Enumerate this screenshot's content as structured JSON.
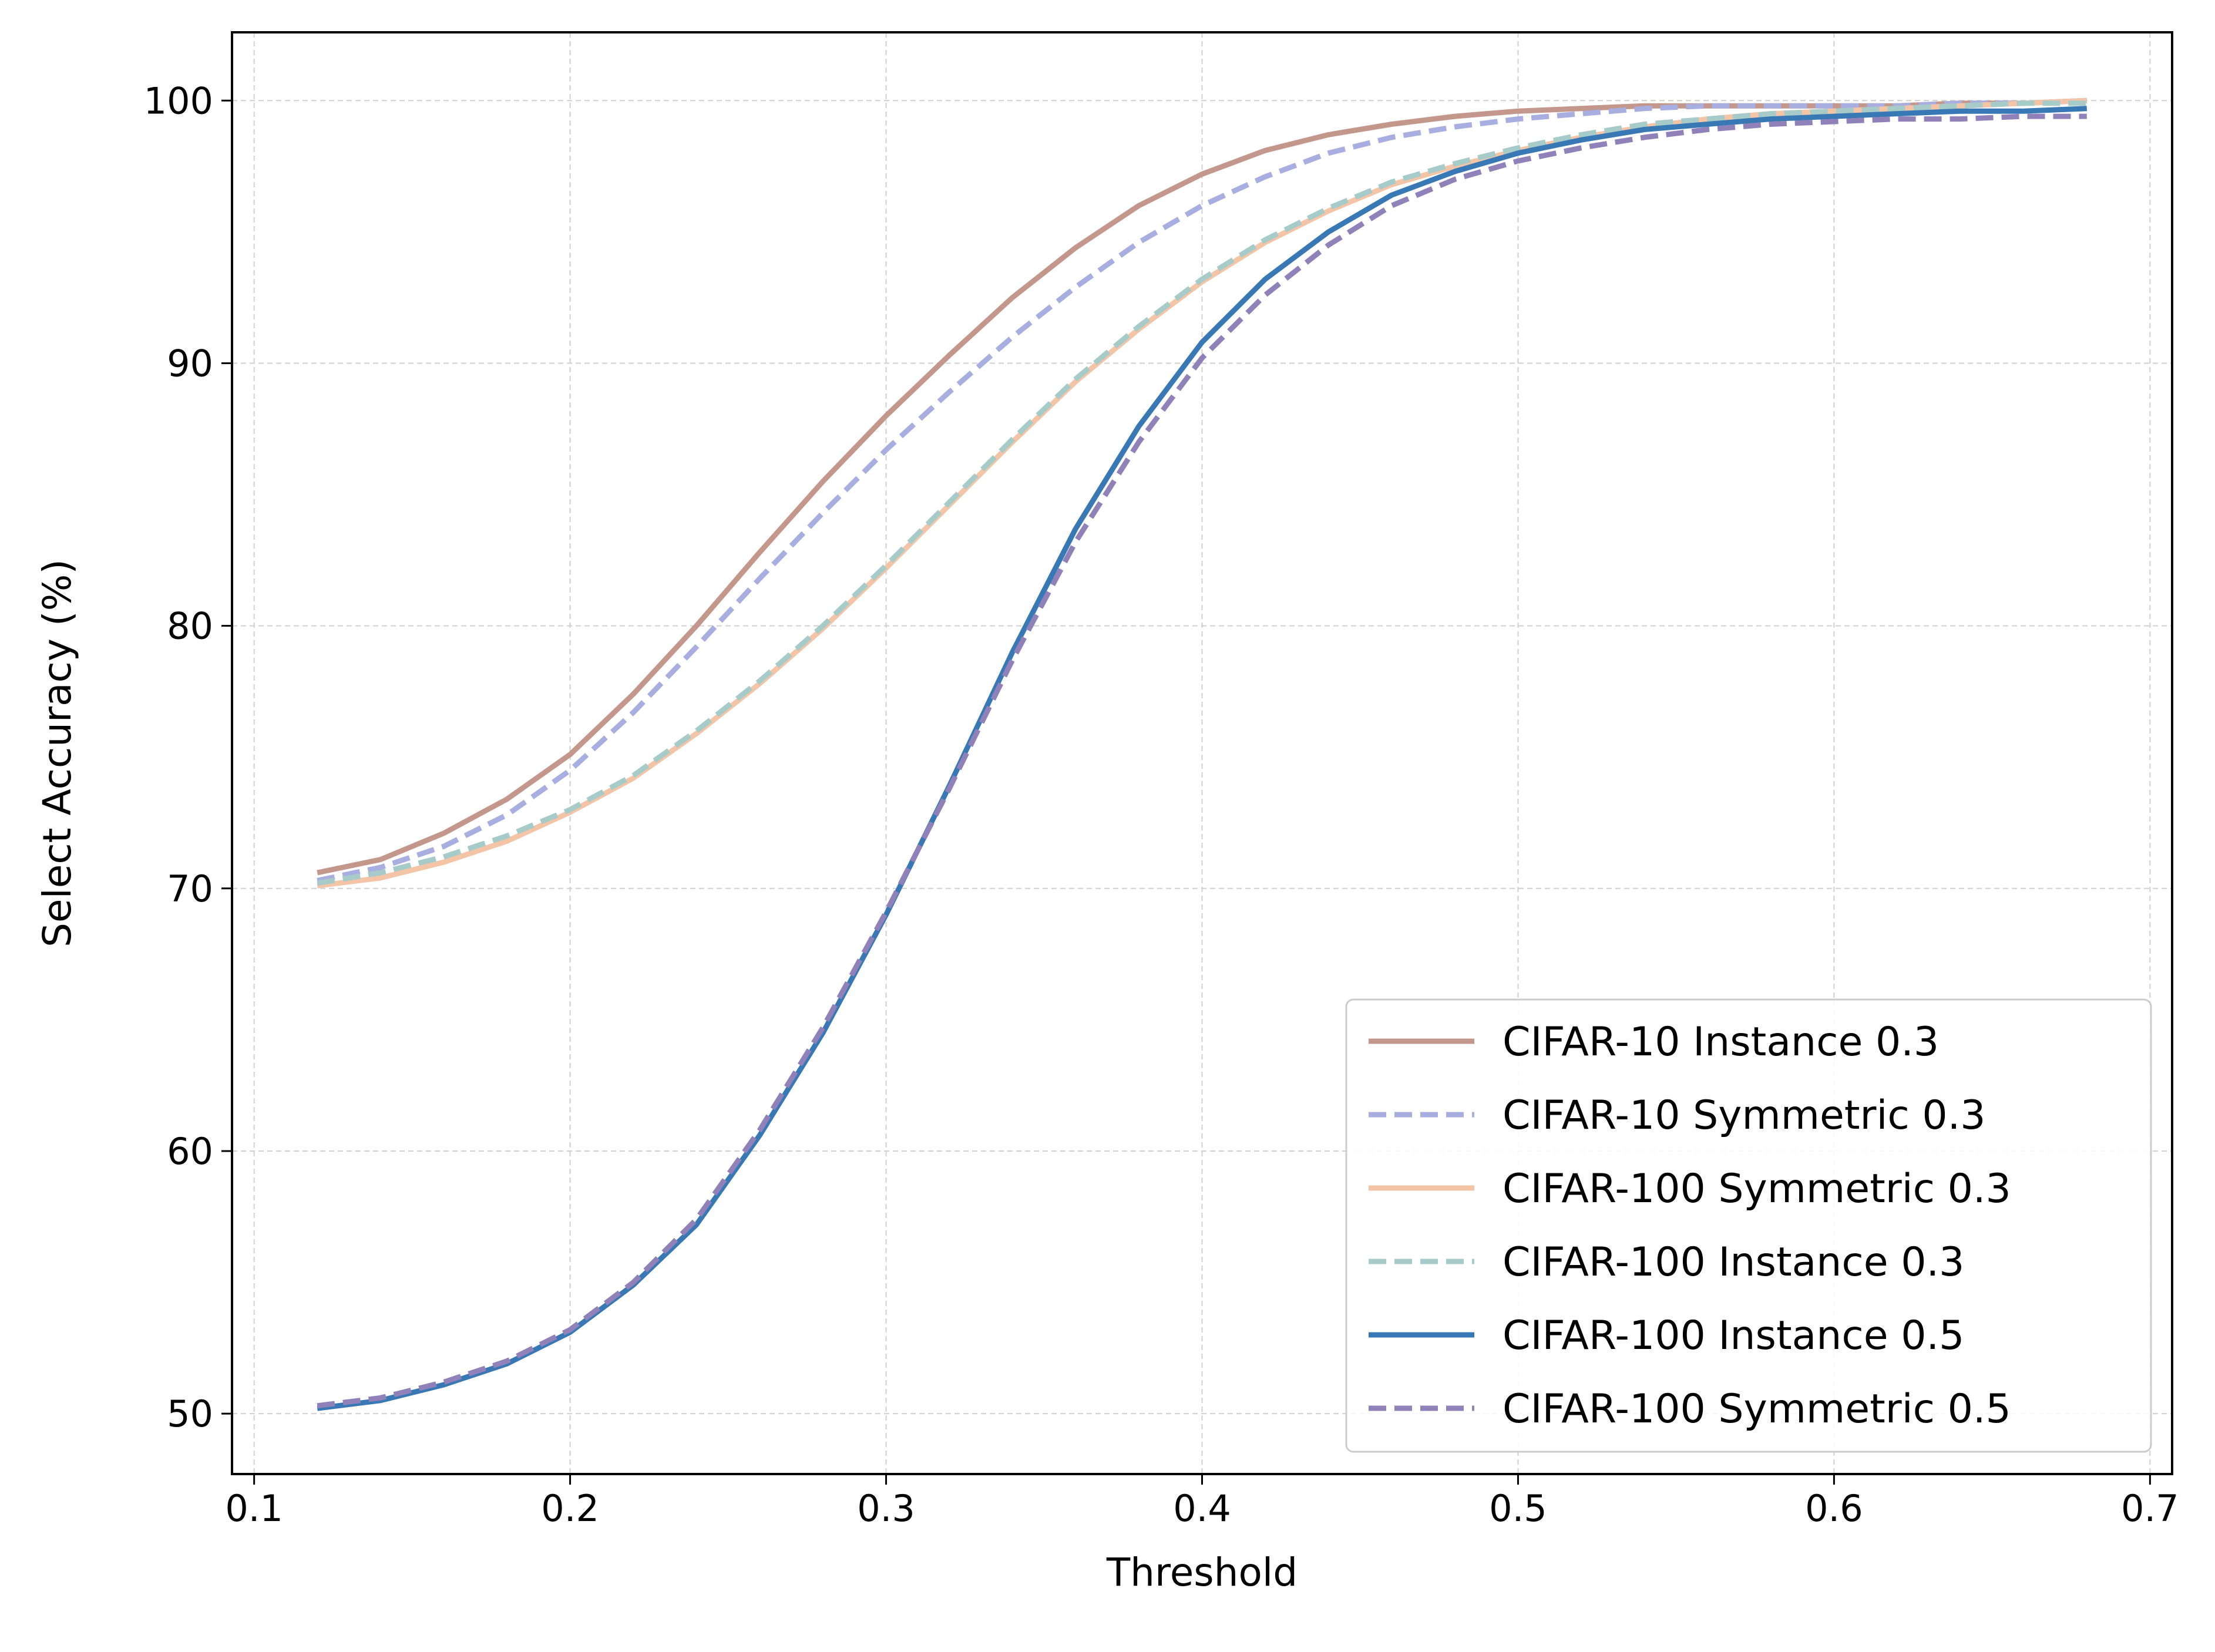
{
  "chart_data": {
    "type": "line",
    "title": "",
    "xlabel": "Threshold",
    "ylabel": "Select Accuracy (%)",
    "xlim": [
      0.093,
      0.707
    ],
    "ylim": [
      47.7,
      102.6
    ],
    "xticks": [
      0.1,
      0.2,
      0.3,
      0.4,
      0.5,
      0.6,
      0.7
    ],
    "xtick_labels": [
      "0.1",
      "0.2",
      "0.3",
      "0.4",
      "0.5",
      "0.6",
      "0.7"
    ],
    "yticks": [
      50,
      60,
      70,
      80,
      90,
      100
    ],
    "ytick_labels": [
      "50",
      "60",
      "70",
      "80",
      "90",
      "100"
    ],
    "grid": true,
    "legend_position": "lower-right",
    "x": [
      0.12,
      0.14,
      0.16,
      0.18,
      0.2,
      0.22,
      0.24,
      0.26,
      0.28,
      0.3,
      0.32,
      0.34,
      0.36,
      0.38,
      0.4,
      0.42,
      0.44,
      0.46,
      0.48,
      0.5,
      0.52,
      0.54,
      0.56,
      0.58,
      0.6,
      0.62,
      0.64,
      0.66,
      0.68
    ],
    "series": [
      {
        "name": "CIFAR-10 Instance 0.3",
        "color": "#c4978c",
        "dash": "solid",
        "values": [
          70.6,
          71.1,
          72.1,
          73.4,
          75.1,
          77.4,
          80.0,
          82.8,
          85.5,
          88.0,
          90.3,
          92.5,
          94.4,
          96.0,
          97.2,
          98.1,
          98.7,
          99.1,
          99.4,
          99.6,
          99.7,
          99.8,
          99.8,
          99.8,
          99.8,
          99.8,
          99.9,
          99.9,
          100.0
        ]
      },
      {
        "name": "CIFAR-10 Symmetric 0.3",
        "color": "#a8aee0",
        "dash": "dashed",
        "values": [
          70.3,
          70.8,
          71.6,
          72.8,
          74.5,
          76.7,
          79.2,
          81.8,
          84.3,
          86.7,
          88.9,
          91.0,
          92.9,
          94.6,
          96.0,
          97.1,
          98.0,
          98.6,
          99.0,
          99.3,
          99.5,
          99.7,
          99.8,
          99.8,
          99.8,
          99.8,
          99.9,
          99.9,
          100.0
        ]
      },
      {
        "name": "CIFAR-100 Symmetric 0.3",
        "color": "#f3c4a6",
        "dash": "solid",
        "values": [
          70.1,
          70.4,
          71.0,
          71.8,
          72.9,
          74.2,
          75.9,
          77.8,
          79.9,
          82.2,
          84.6,
          87.0,
          89.3,
          91.3,
          93.1,
          94.6,
          95.8,
          96.8,
          97.5,
          98.1,
          98.6,
          99.0,
          99.3,
          99.5,
          99.6,
          99.7,
          99.8,
          99.9,
          100.0
        ]
      },
      {
        "name": "CIFAR-100 Instance 0.3",
        "color": "#a6cbc8",
        "dash": "dashed",
        "values": [
          70.2,
          70.6,
          71.2,
          72.0,
          73.0,
          74.3,
          76.0,
          77.9,
          80.0,
          82.3,
          84.7,
          87.1,
          89.4,
          91.4,
          93.2,
          94.7,
          95.9,
          96.9,
          97.6,
          98.2,
          98.7,
          99.1,
          99.3,
          99.5,
          99.6,
          99.7,
          99.8,
          99.9,
          99.9
        ]
      },
      {
        "name": "CIFAR-100 Instance 0.5",
        "color": "#3878b4",
        "dash": "solid",
        "values": [
          50.2,
          50.5,
          51.1,
          51.9,
          53.1,
          54.9,
          57.2,
          60.6,
          64.5,
          69.0,
          73.9,
          79.0,
          83.7,
          87.6,
          90.8,
          93.2,
          95.0,
          96.4,
          97.3,
          98.0,
          98.5,
          98.9,
          99.1,
          99.3,
          99.4,
          99.5,
          99.6,
          99.6,
          99.7
        ]
      },
      {
        "name": "CIFAR-100 Symmetric 0.5",
        "color": "#9082b8",
        "dash": "dashed",
        "values": [
          50.3,
          50.6,
          51.2,
          52.0,
          53.2,
          55.0,
          57.4,
          60.8,
          64.7,
          69.1,
          73.8,
          78.7,
          83.2,
          87.0,
          90.2,
          92.6,
          94.5,
          96.0,
          97.0,
          97.7,
          98.2,
          98.6,
          98.9,
          99.1,
          99.2,
          99.3,
          99.3,
          99.4,
          99.4
        ]
      }
    ]
  }
}
